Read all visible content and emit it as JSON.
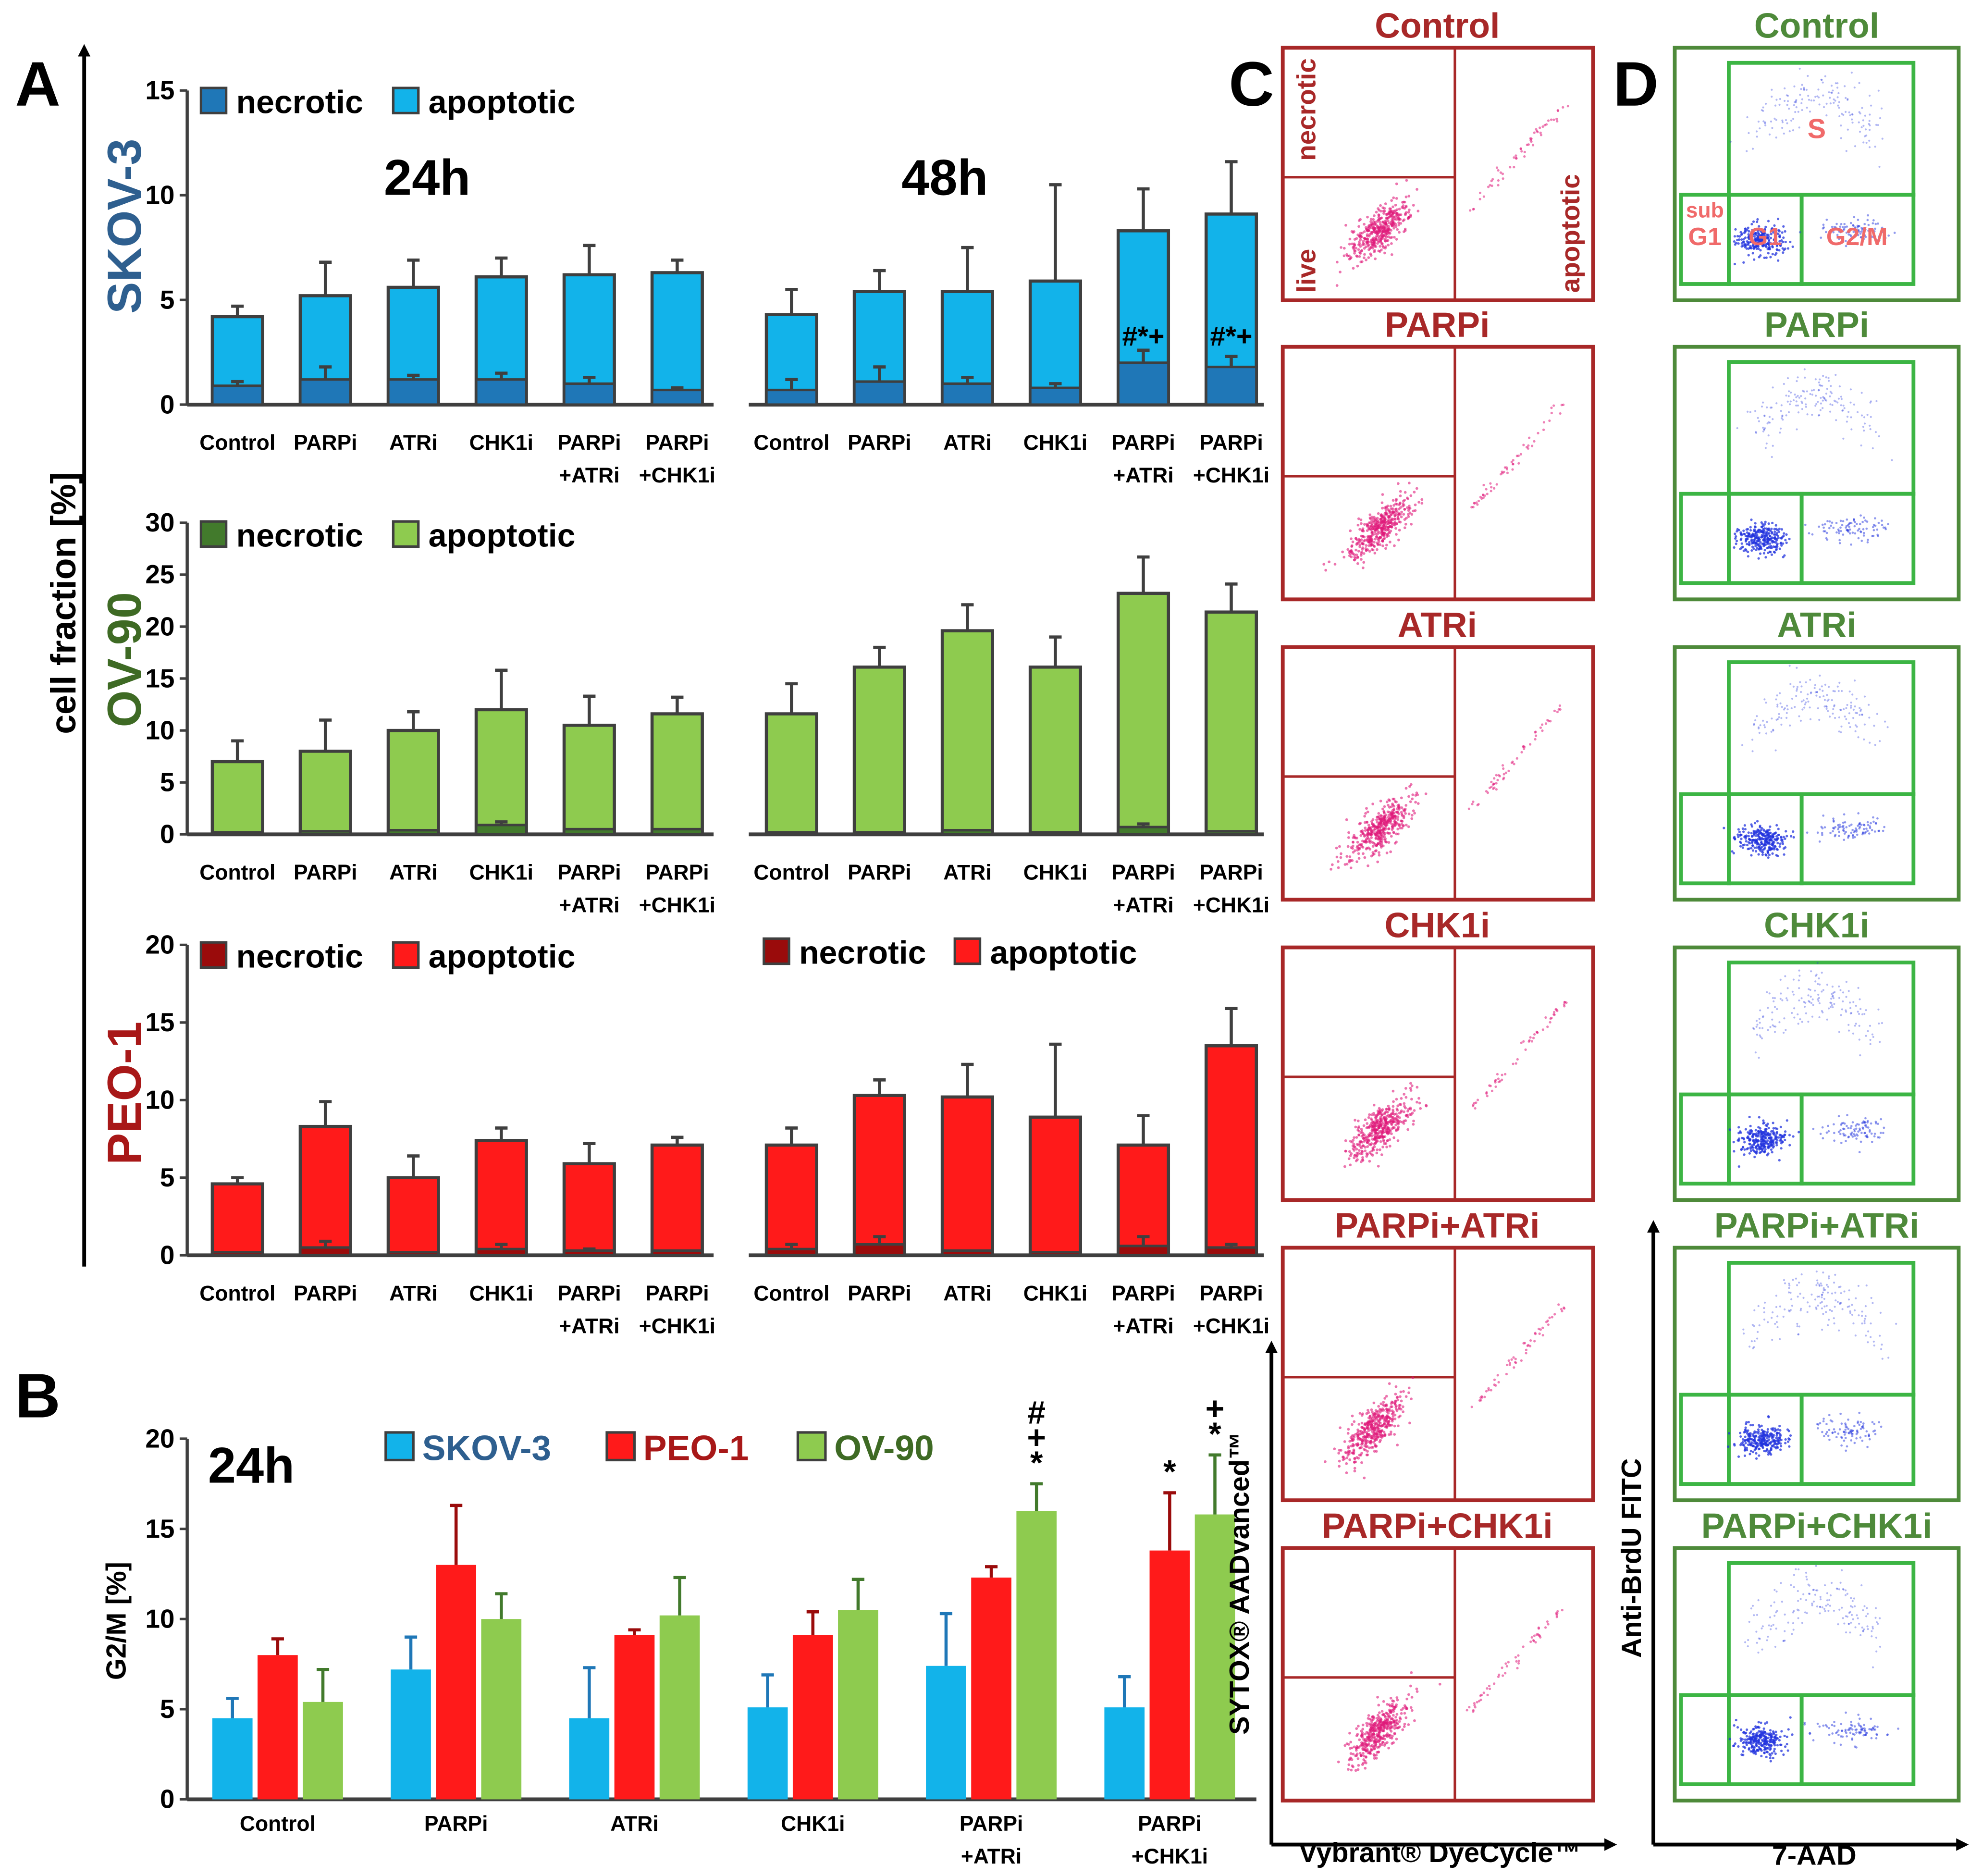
{
  "panel_labels": {
    "a": "A",
    "b": "B",
    "c": "C",
    "d": "D"
  },
  "colors": {
    "skov_light": "#12b3ea",
    "skov_dark": "#1f77b7",
    "skov_title": "#2e5f8f",
    "ov_light": "#8ecb4f",
    "ov_dark": "#427a2c",
    "ov_title": "#3e6a24",
    "peo_light": "#ff1a1a",
    "peo_dark": "#9a0b0b",
    "peo_title": "#a81818",
    "bar_edge": "#3f3f3f",
    "c_box": "#a82828",
    "c_dots": "#e0197a",
    "d_box": "#3cb544",
    "d_outer": "#4e8a3a",
    "d_dots": "#2233dd",
    "d_gate_label": "#f06a6a"
  },
  "panel_a": {
    "y_axis_label": "cell fraction [%]",
    "time_labels": [
      "24h",
      "48h"
    ],
    "legend_necrotic": "necrotic",
    "legend_apoptotic": "apoptotic",
    "cell_lines": [
      "SKOV-3",
      "OV-90",
      "PEO-1"
    ],
    "categories": [
      "Control",
      "PARPi",
      "ATRi",
      "CHK1i",
      "PARPi\n+ATRi",
      "PARPi\n+CHK1i"
    ],
    "significance_48h_skov": {
      "PARPi\n+ATRi": "#*+",
      "PARPi\n+CHK1i": "#*+"
    }
  },
  "panel_b": {
    "time_label": "24h",
    "y_axis_label": "G2/M [%]",
    "legend": [
      "SKOV-3",
      "PEO-1",
      "OV-90"
    ],
    "categories": [
      "Control",
      "PARPi",
      "ATRi",
      "CHK1i",
      "PARPi\n+ATRi",
      "PARPi\n+CHK1i"
    ]
  },
  "panel_c": {
    "titles": [
      "Control",
      "PARPi",
      "ATRi",
      "CHK1i",
      "PARPi+ATRi",
      "PARPi+CHK1i"
    ],
    "gate_labels": {
      "necrotic": "necrotic",
      "live": "live",
      "apoptotic": "apoptotic"
    },
    "y_axis_label": "SYTOX® AADvanced™",
    "x_axis_label": "Vybrant® DyeCycle™"
  },
  "panel_d": {
    "titles": [
      "Control",
      "PARPi",
      "ATRi",
      "CHK1i",
      "PARPi+ATRi",
      "PARPi+CHK1i"
    ],
    "gate_labels": {
      "s": "S",
      "sub": "sub",
      "subg1": "G1",
      "g1": "G1",
      "g2m": "G2/M"
    },
    "y_axis_label": "Anti-BrdU FITC",
    "x_axis_label": "7-AAD"
  },
  "chart_data": [
    {
      "type": "bar",
      "title": "SKOV-3",
      "subtitle": "24h",
      "xlabel": "",
      "ylabel": "cell fraction [%]",
      "ylim": [
        0,
        15
      ],
      "categories": [
        "Control",
        "PARPi",
        "ATRi",
        "CHK1i",
        "PARPi\n+ATRi",
        "PARPi\n+CHK1i"
      ],
      "stacked": true,
      "series": [
        {
          "name": "necrotic",
          "values": [
            0.9,
            1.2,
            1.2,
            1.2,
            1.0,
            0.7
          ],
          "errors": [
            0.2,
            0.6,
            0.2,
            0.3,
            0.3,
            0.1
          ]
        },
        {
          "name": "apoptotic",
          "total": [
            4.2,
            5.2,
            5.6,
            6.1,
            6.2,
            6.3
          ],
          "errors": [
            0.5,
            1.6,
            1.3,
            0.9,
            1.4,
            0.6
          ]
        }
      ]
    },
    {
      "type": "bar",
      "title": "SKOV-3",
      "subtitle": "48h",
      "xlabel": "",
      "ylabel": "",
      "ylim": [
        0,
        15
      ],
      "categories": [
        "Control",
        "PARPi",
        "ATRi",
        "CHK1i",
        "PARPi\n+ATRi",
        "PARPi\n+CHK1i"
      ],
      "stacked": true,
      "series": [
        {
          "name": "necrotic",
          "values": [
            0.7,
            1.1,
            1.0,
            0.8,
            2.0,
            1.8
          ],
          "errors": [
            0.5,
            0.7,
            0.3,
            0.2,
            0.6,
            0.5
          ]
        },
        {
          "name": "apoptotic",
          "total": [
            4.3,
            5.4,
            5.4,
            5.9,
            8.3,
            9.1
          ],
          "errors": [
            1.2,
            1.0,
            2.1,
            4.6,
            2.0,
            2.5
          ]
        }
      ]
    },
    {
      "type": "bar",
      "title": "OV-90",
      "subtitle": "24h",
      "xlabel": "",
      "ylabel": "",
      "ylim": [
        0,
        30
      ],
      "categories": [
        "Control",
        "PARPi",
        "ATRi",
        "CHK1i",
        "PARPi\n+ATRi",
        "PARPi\n+CHK1i"
      ],
      "stacked": true,
      "series": [
        {
          "name": "necrotic",
          "values": [
            0.2,
            0.3,
            0.4,
            0.9,
            0.5,
            0.5
          ],
          "errors": [
            0.0,
            0.0,
            0.0,
            0.3,
            0.0,
            0.0
          ]
        },
        {
          "name": "apoptotic",
          "total": [
            7.0,
            8.0,
            10.0,
            12.0,
            10.5,
            11.6
          ],
          "errors": [
            2.0,
            3.0,
            1.8,
            3.8,
            2.8,
            1.6
          ]
        }
      ]
    },
    {
      "type": "bar",
      "title": "OV-90",
      "subtitle": "48h",
      "xlabel": "",
      "ylabel": "",
      "ylim": [
        0,
        30
      ],
      "categories": [
        "Control",
        "PARPi",
        "ATRi",
        "CHK1i",
        "PARPi\n+ATRi",
        "PARPi\n+CHK1i"
      ],
      "stacked": true,
      "series": [
        {
          "name": "necrotic",
          "values": [
            0.2,
            0.2,
            0.4,
            0.2,
            0.7,
            0.3
          ],
          "errors": [
            0.0,
            0.0,
            0.0,
            0.0,
            0.3,
            0.0
          ]
        },
        {
          "name": "apoptotic",
          "total": [
            11.6,
            16.1,
            19.6,
            16.1,
            23.2,
            21.4
          ],
          "errors": [
            2.9,
            1.9,
            2.5,
            2.9,
            3.5,
            2.7
          ]
        }
      ]
    },
    {
      "type": "bar",
      "title": "PEO-1",
      "subtitle": "24h",
      "xlabel": "",
      "ylabel": "",
      "ylim": [
        0,
        20
      ],
      "categories": [
        "Control",
        "PARPi",
        "ATRi",
        "CHK1i",
        "PARPi\n+ATRi",
        "PARPi\n+CHK1i"
      ],
      "stacked": true,
      "series": [
        {
          "name": "necrotic",
          "values": [
            0.2,
            0.5,
            0.2,
            0.4,
            0.3,
            0.3
          ],
          "errors": [
            0.0,
            0.4,
            0.0,
            0.3,
            0.1,
            0.0
          ]
        },
        {
          "name": "apoptotic",
          "total": [
            4.6,
            8.3,
            5.0,
            7.4,
            5.9,
            7.1
          ],
          "errors": [
            0.4,
            1.6,
            1.4,
            0.8,
            1.3,
            0.5
          ]
        }
      ]
    },
    {
      "type": "bar",
      "title": "PEO-1",
      "subtitle": "48h",
      "xlabel": "",
      "ylabel": "",
      "ylim": [
        0,
        20
      ],
      "categories": [
        "Control",
        "PARPi",
        "ATRi",
        "CHK1i",
        "PARPi\n+ATRi",
        "PARPi\n+CHK1i"
      ],
      "stacked": true,
      "series": [
        {
          "name": "necrotic",
          "values": [
            0.4,
            0.7,
            0.3,
            0.2,
            0.6,
            0.5
          ],
          "errors": [
            0.3,
            0.5,
            0.0,
            0.0,
            0.6,
            0.2
          ]
        },
        {
          "name": "apoptotic",
          "total": [
            7.1,
            10.3,
            10.2,
            8.9,
            7.1,
            13.5
          ],
          "errors": [
            1.1,
            1.0,
            2.1,
            4.7,
            1.9,
            2.4
          ]
        }
      ]
    },
    {
      "type": "bar",
      "title": "",
      "subtitle": "24h",
      "xlabel": "",
      "ylabel": "G2/M [%]",
      "ylim": [
        0,
        20
      ],
      "categories": [
        "Control",
        "PARPi",
        "ATRi",
        "CHK1i",
        "PARPi\n+ATRi",
        "PARPi\n+CHK1i"
      ],
      "series": [
        {
          "name": "SKOV-3",
          "values": [
            4.5,
            7.2,
            4.5,
            5.1,
            7.4,
            5.1
          ],
          "errors": [
            1.1,
            1.8,
            2.8,
            1.8,
            2.9,
            1.7
          ]
        },
        {
          "name": "PEO-1",
          "values": [
            8.0,
            13.0,
            9.1,
            9.1,
            12.3,
            13.8
          ],
          "errors": [
            0.9,
            3.3,
            0.3,
            1.3,
            0.6,
            3.2
          ]
        },
        {
          "name": "OV-90",
          "values": [
            5.4,
            10.0,
            10.2,
            10.5,
            16.0,
            15.8
          ],
          "errors": [
            1.8,
            1.4,
            2.1,
            1.7,
            1.5,
            3.3
          ]
        }
      ],
      "annotations": [
        {
          "category": "PARPi\n+ATRi",
          "series": "OV-90",
          "text": "#+*"
        },
        {
          "category": "PARPi\n+CHK1i",
          "series": "PEO-1",
          "text": "*"
        },
        {
          "category": "PARPi\n+CHK1i",
          "series": "OV-90",
          "text": "+*"
        }
      ]
    }
  ]
}
